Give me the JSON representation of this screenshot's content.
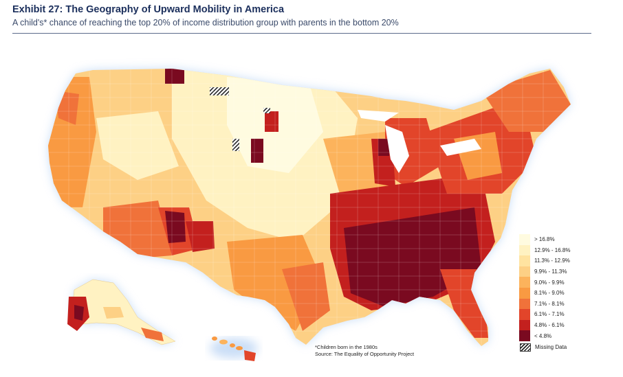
{
  "header": {
    "title": "Exhibit 27: The Geography of Upward Mobility in America",
    "subtitle": "A child's* chance of reaching the top 20% of income distribution group with parents in the bottom 20%"
  },
  "legend": {
    "items": [
      {
        "label": "> 16.8%",
        "color": "#fffbe0"
      },
      {
        "label": "12.9% - 16.8%",
        "color": "#fff2c2"
      },
      {
        "label": "11.3% - 12.9%",
        "color": "#ffe3a0"
      },
      {
        "label": "9.9% - 11.3%",
        "color": "#fdd085"
      },
      {
        "label": "9.0% - 9.9%",
        "color": "#fcb35c"
      },
      {
        "label": "8.1% - 9.0%",
        "color": "#f99a42"
      },
      {
        "label": "7.1% - 8.1%",
        "color": "#f0723a"
      },
      {
        "label": "6.1% - 7.1%",
        "color": "#e2452a"
      },
      {
        "label": "4.8% - 6.1%",
        "color": "#c3201e"
      },
      {
        "label": "< 4.8%",
        "color": "#7a0a20"
      }
    ],
    "missing_label": "Missing Data"
  },
  "footnote": {
    "line1": "*Children born in the 1980s",
    "line2": "Source: The Equality of Opportunity Project"
  }
}
